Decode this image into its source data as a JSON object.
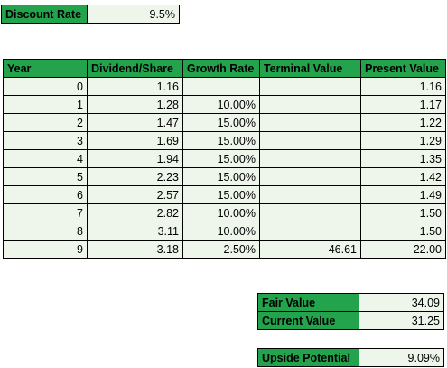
{
  "discount": {
    "label": "Discount Rate",
    "value": "9.5%"
  },
  "table": {
    "headers": [
      "Year",
      "Dividend/Share",
      "Growth Rate",
      "Terminal Value",
      "Present Value"
    ],
    "rows": [
      {
        "year": "0",
        "dividend": "1.16",
        "growth": "",
        "terminal": "",
        "present": "1.16"
      },
      {
        "year": "1",
        "dividend": "1.28",
        "growth": "10.00%",
        "terminal": "",
        "present": "1.17"
      },
      {
        "year": "2",
        "dividend": "1.47",
        "growth": "15.00%",
        "terminal": "",
        "present": "1.22"
      },
      {
        "year": "3",
        "dividend": "1.69",
        "growth": "15.00%",
        "terminal": "",
        "present": "1.29"
      },
      {
        "year": "4",
        "dividend": "1.94",
        "growth": "15.00%",
        "terminal": "",
        "present": "1.35"
      },
      {
        "year": "5",
        "dividend": "2.23",
        "growth": "15.00%",
        "terminal": "",
        "present": "1.42"
      },
      {
        "year": "6",
        "dividend": "2.57",
        "growth": "15.00%",
        "terminal": "",
        "present": "1.49"
      },
      {
        "year": "7",
        "dividend": "2.82",
        "growth": "10.00%",
        "terminal": "",
        "present": "1.50"
      },
      {
        "year": "8",
        "dividend": "3.11",
        "growth": "10.00%",
        "terminal": "",
        "present": "1.50"
      },
      {
        "year": "9",
        "dividend": "3.18",
        "growth": "2.50%",
        "terminal": "46.61",
        "present": "22.00"
      }
    ]
  },
  "summary": {
    "fair_value_label": "Fair Value",
    "fair_value": "34.09",
    "current_value_label": "Current Value",
    "current_value": "31.25",
    "upside_label": "Upside Potential",
    "upside_value": "9.09%"
  },
  "colors": {
    "header_green": "#22a34c",
    "cell_tint": "#eef5ea",
    "border": "#000000"
  }
}
